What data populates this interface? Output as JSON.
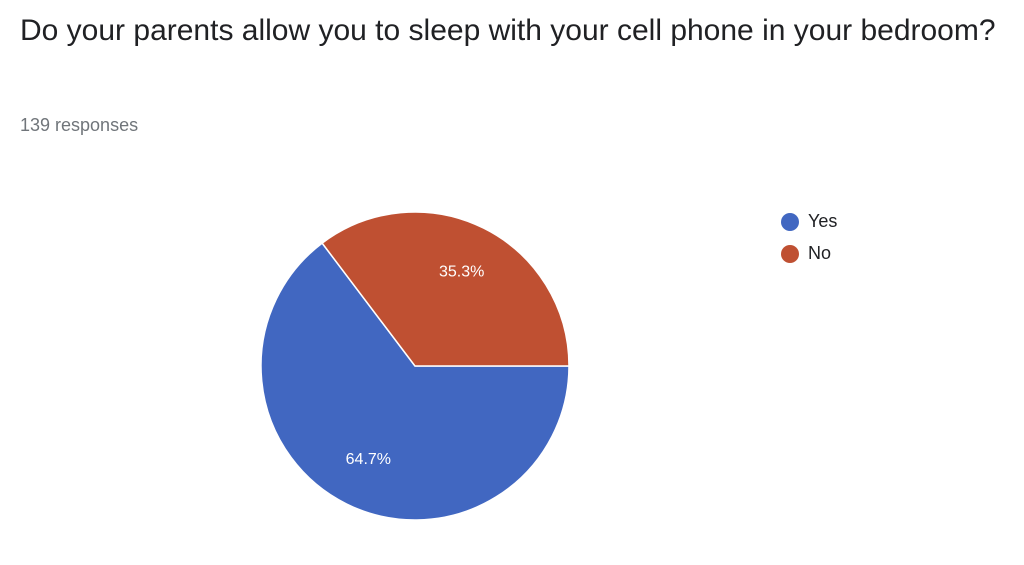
{
  "chart_data": {
    "type": "pie",
    "title": "Do your parents allow you to sleep with your cell phone in your bedroom?",
    "subtitle": "139 responses",
    "categories": [
      "Yes",
      "No"
    ],
    "values": [
      64.7,
      35.3
    ],
    "value_labels": [
      "64.7%",
      "35.3%"
    ],
    "colors": [
      "#4167c1",
      "#bf5032"
    ],
    "legend": "right"
  }
}
